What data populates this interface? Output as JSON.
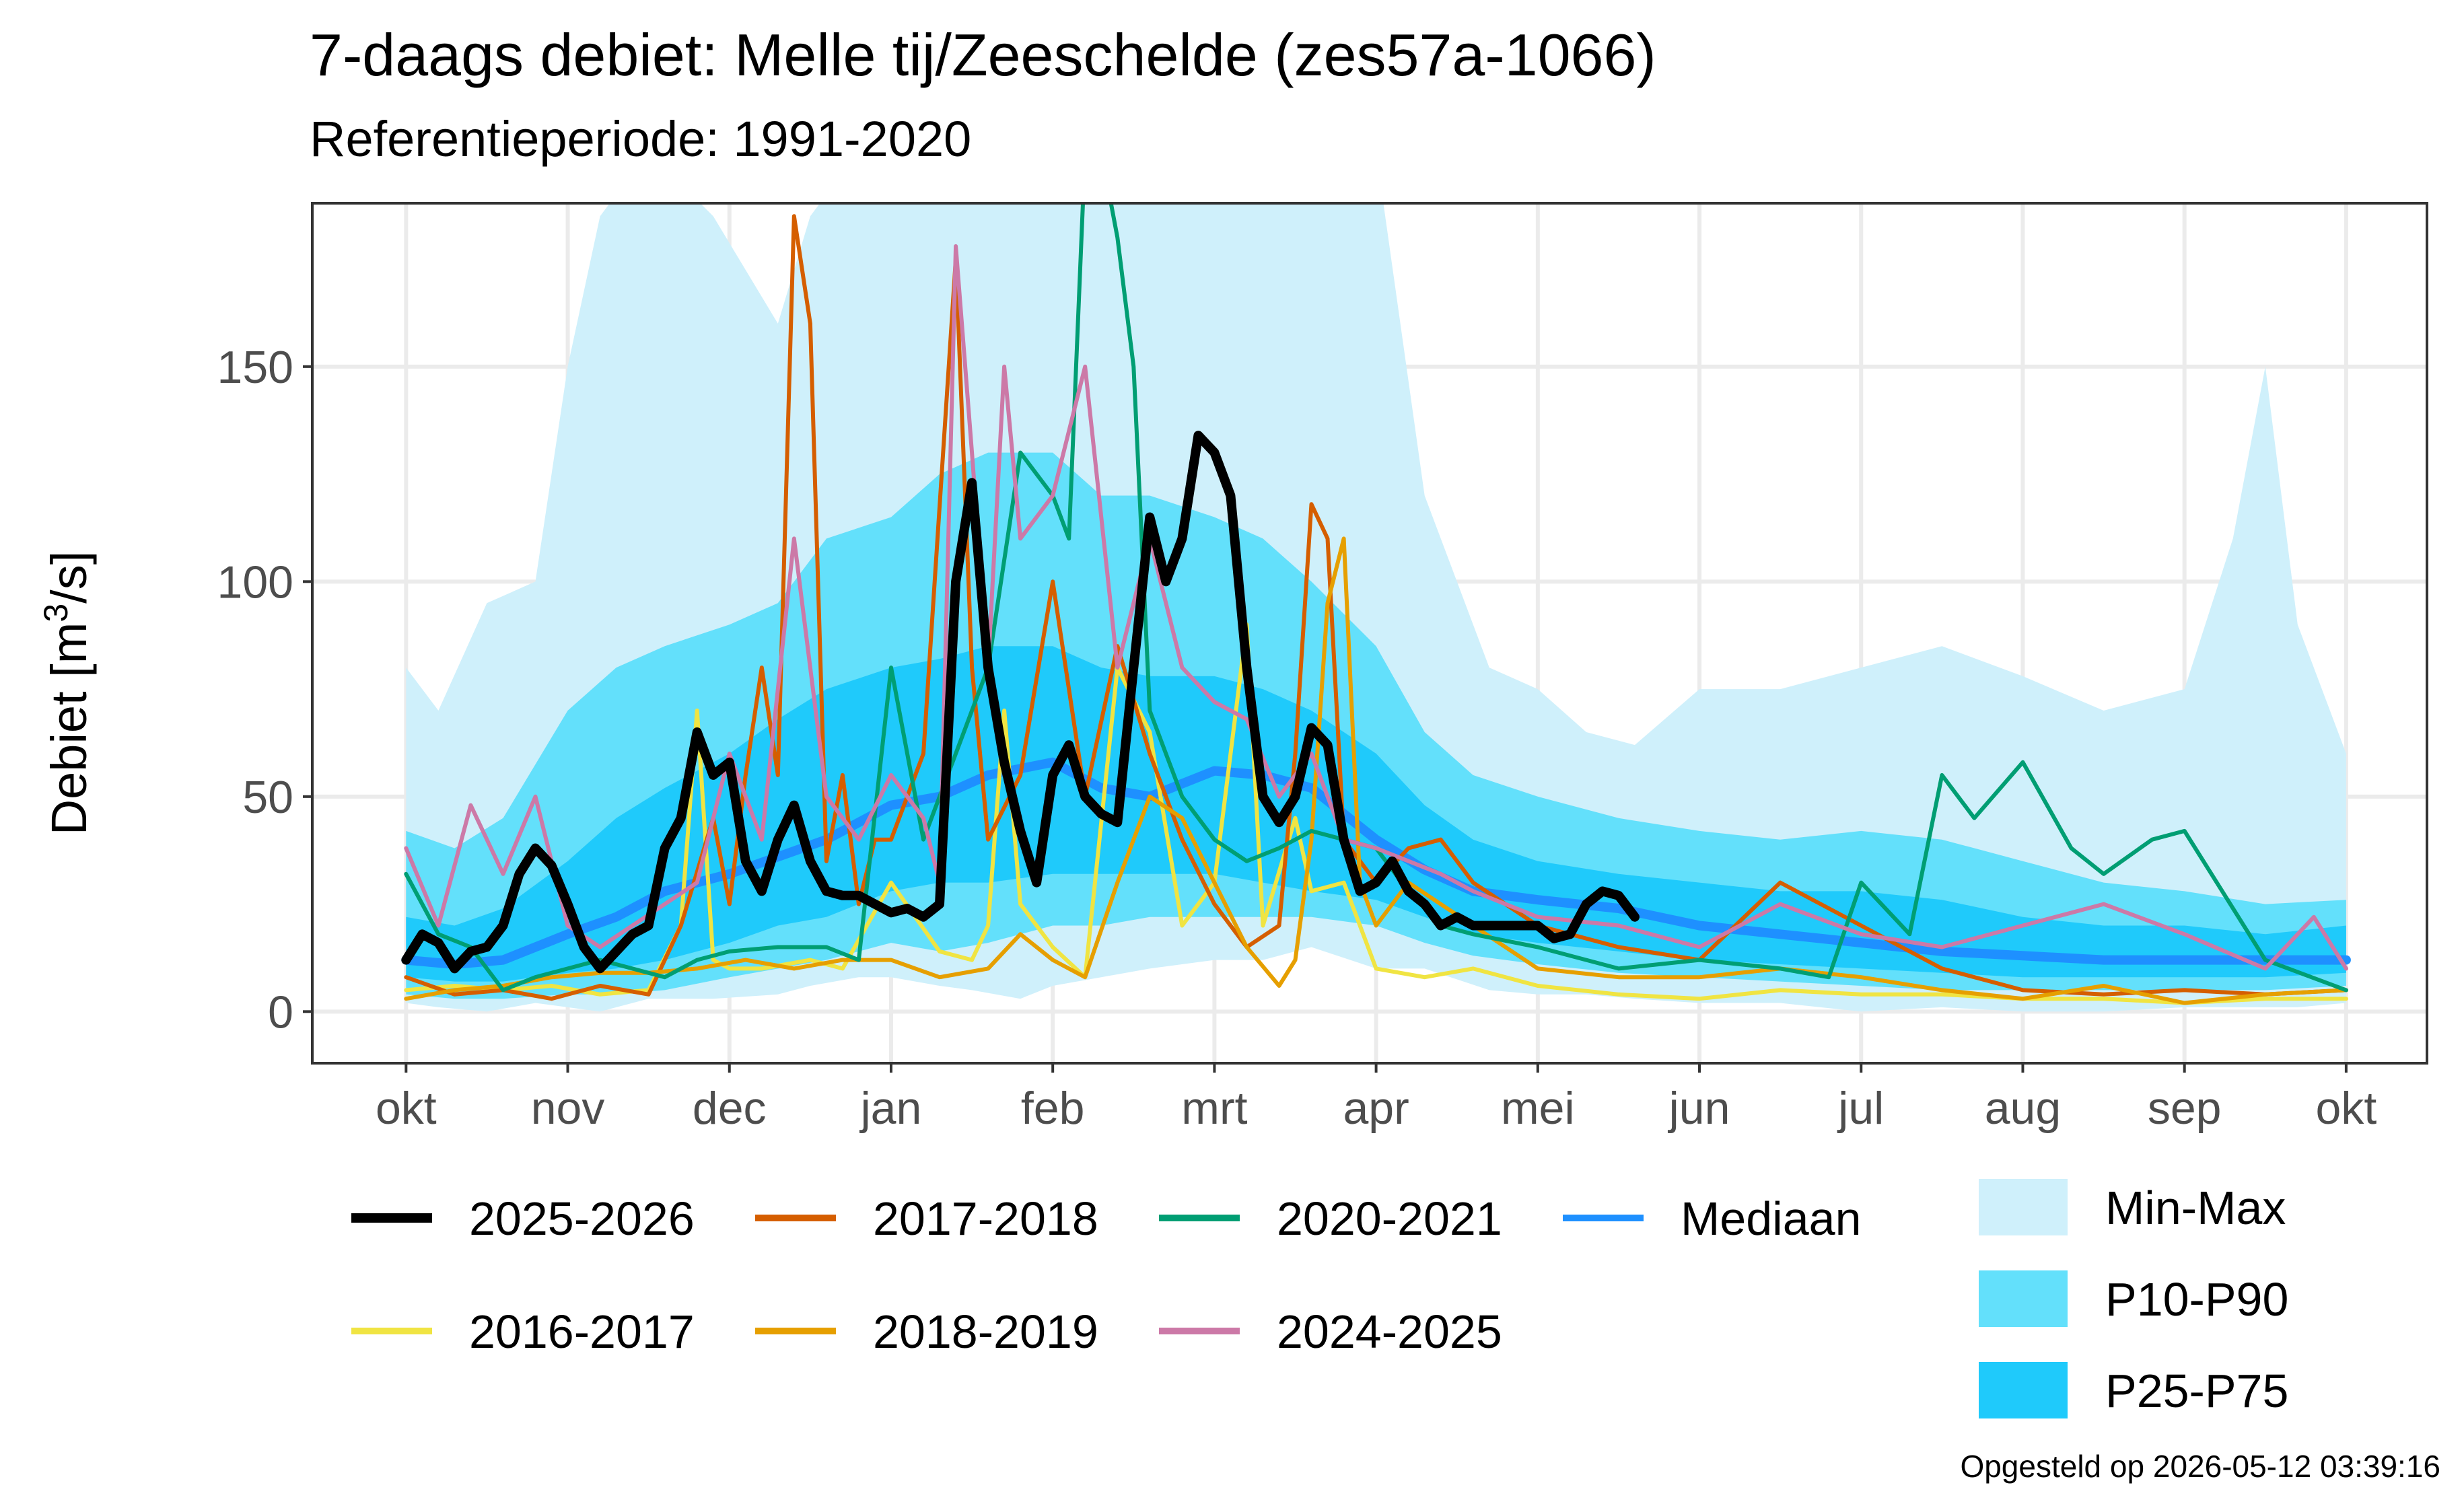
{
  "chart_data": {
    "type": "area",
    "title": "7-daags debiet: Melle tij/Zeeschelde (zes57a-1066)",
    "subtitle": "Referentieperiode: 1991-2020",
    "ylabel": "Debiet [m³/s]",
    "ylabel_main": "Debiet [m",
    "ylabel_sup": "3",
    "ylabel_end": "/s]",
    "caption": "Opgesteld op 2026-05-12 03:39:16",
    "x_ticks": [
      "okt",
      "nov",
      "dec",
      "jan",
      "feb",
      "mrt",
      "apr",
      "mei",
      "jun",
      "jul",
      "aug",
      "sep",
      "okt"
    ],
    "y_ticks": [
      0,
      50,
      100,
      150
    ],
    "ylim": [
      -12,
      188
    ],
    "xlim_months": [
      -0.58,
      12.5
    ],
    "grid": true,
    "legend_position": "bottom",
    "bands": [
      {
        "name": "Min-Max",
        "color": "#cff0fb",
        "x": [
          0.0,
          0.2,
          0.5,
          0.8,
          1.0,
          1.2,
          1.5,
          1.9,
          2.3,
          2.5,
          2.8,
          3.0,
          3.3,
          3.5,
          3.8,
          4.0,
          4.3,
          4.6,
          5.0,
          5.3,
          5.6,
          6.0,
          6.3,
          6.7,
          7.0,
          7.3,
          7.6,
          8.0,
          8.5,
          9.0,
          9.5,
          10.0,
          10.5,
          11.0,
          11.3,
          11.5,
          11.7,
          12.0
        ],
        "low": [
          2,
          1,
          0,
          2,
          1,
          0,
          3,
          3,
          4,
          6,
          8,
          8,
          6,
          5,
          3,
          6,
          8,
          10,
          12,
          12,
          15,
          10,
          10,
          5,
          4,
          4,
          3,
          2,
          2,
          0,
          1,
          0,
          0,
          1,
          1,
          1,
          1,
          2
        ],
        "high": [
          80,
          70,
          95,
          100,
          150,
          185,
          200,
          185,
          160,
          185,
          200,
          200,
          188,
          200,
          188,
          188,
          188,
          188,
          200,
          188,
          188,
          200,
          120,
          80,
          75,
          65,
          62,
          75,
          75,
          80,
          85,
          78,
          70,
          75,
          110,
          150,
          90,
          60
        ]
      },
      {
        "name": "P10-P90",
        "color": "#63e0fb",
        "x": [
          0.0,
          0.3,
          0.6,
          1.0,
          1.3,
          1.6,
          2.0,
          2.3,
          2.6,
          3.0,
          3.3,
          3.6,
          4.0,
          4.3,
          4.6,
          5.0,
          5.3,
          5.6,
          6.0,
          6.3,
          6.6,
          7.0,
          7.5,
          8.0,
          8.5,
          9.0,
          9.5,
          10.0,
          10.5,
          11.0,
          11.5,
          12.0
        ],
        "low": [
          4,
          3,
          3,
          4,
          4,
          5,
          8,
          10,
          12,
          16,
          14,
          16,
          20,
          20,
          22,
          22,
          22,
          22,
          20,
          16,
          13,
          11,
          9,
          8,
          7,
          6,
          5,
          5,
          5,
          5,
          5,
          6
        ],
        "high": [
          42,
          38,
          45,
          70,
          80,
          85,
          90,
          95,
          110,
          115,
          125,
          130,
          130,
          120,
          120,
          115,
          110,
          100,
          85,
          65,
          55,
          50,
          45,
          42,
          40,
          42,
          40,
          35,
          30,
          28,
          25,
          26
        ]
      },
      {
        "name": "P25-P75",
        "color": "#1fcafb",
        "x": [
          0.0,
          0.3,
          0.6,
          1.0,
          1.3,
          1.6,
          2.0,
          2.3,
          2.6,
          3.0,
          3.3,
          3.6,
          4.0,
          4.3,
          4.6,
          5.0,
          5.3,
          5.6,
          6.0,
          6.3,
          6.6,
          7.0,
          7.5,
          8.0,
          8.5,
          9.0,
          9.5,
          10.0,
          10.5,
          11.0,
          11.5,
          12.0
        ],
        "low": [
          8,
          7,
          7,
          9,
          10,
          12,
          16,
          20,
          22,
          28,
          30,
          30,
          32,
          32,
          32,
          32,
          30,
          28,
          26,
          22,
          18,
          16,
          14,
          12,
          11,
          10,
          9,
          8,
          8,
          8,
          8,
          9
        ],
        "high": [
          22,
          20,
          24,
          35,
          45,
          52,
          60,
          68,
          75,
          80,
          82,
          85,
          85,
          80,
          78,
          78,
          75,
          70,
          60,
          48,
          40,
          35,
          32,
          30,
          28,
          28,
          26,
          22,
          20,
          20,
          18,
          20
        ]
      }
    ],
    "series": [
      {
        "name": "Mediaan",
        "color": "#1e90ff",
        "width": 14,
        "x": [
          0.0,
          0.3,
          0.6,
          1.0,
          1.3,
          1.6,
          2.0,
          2.3,
          2.6,
          3.0,
          3.3,
          3.6,
          4.0,
          4.3,
          4.6,
          5.0,
          5.3,
          5.6,
          6.0,
          6.3,
          6.6,
          7.0,
          7.5,
          8.0,
          8.5,
          9.0,
          9.5,
          10.0,
          10.5,
          11.0,
          11.5,
          12.0
        ],
        "y": [
          12,
          11,
          12,
          18,
          22,
          28,
          32,
          36,
          40,
          48,
          50,
          55,
          58,
          52,
          50,
          56,
          55,
          52,
          40,
          33,
          28,
          26,
          24,
          20,
          18,
          16,
          14,
          13,
          12,
          12,
          12,
          12
        ]
      },
      {
        "name": "2016-2017",
        "color": "#f0e442",
        "width": 6,
        "x": [
          0.0,
          0.3,
          0.6,
          0.9,
          1.2,
          1.5,
          1.7,
          1.8,
          1.9,
          2.0,
          2.2,
          2.5,
          2.7,
          3.0,
          3.3,
          3.5,
          3.6,
          3.7,
          3.8,
          4.0,
          4.2,
          4.4,
          4.6,
          4.8,
          5.0,
          5.2,
          5.3,
          5.5,
          5.6,
          5.8,
          6.0,
          6.3,
          6.6,
          7.0,
          7.5,
          8.0,
          8.5,
          9.0,
          9.5,
          10.0,
          10.5,
          11.0,
          11.5,
          12.0
        ],
        "y": [
          5,
          6,
          5,
          6,
          4,
          5,
          20,
          70,
          12,
          10,
          10,
          12,
          10,
          30,
          14,
          12,
          20,
          70,
          25,
          15,
          8,
          80,
          65,
          20,
          30,
          90,
          20,
          45,
          28,
          30,
          10,
          8,
          10,
          6,
          4,
          3,
          5,
          4,
          4,
          3,
          3,
          2,
          3,
          3
        ]
      },
      {
        "name": "2017-2018",
        "color": "#d55e00",
        "width": 6,
        "x": [
          0.0,
          0.3,
          0.6,
          0.9,
          1.2,
          1.5,
          1.7,
          1.9,
          2.0,
          2.1,
          2.2,
          2.3,
          2.4,
          2.5,
          2.6,
          2.7,
          2.8,
          2.9,
          3.0,
          3.2,
          3.4,
          3.5,
          3.6,
          3.8,
          4.0,
          4.2,
          4.4,
          4.6,
          4.8,
          5.0,
          5.2,
          5.4,
          5.5,
          5.6,
          5.7,
          5.8,
          6.0,
          6.2,
          6.4,
          6.6,
          7.0,
          7.5,
          8.0,
          8.5,
          9.0,
          9.5,
          10.0,
          10.5,
          11.0,
          11.5,
          12.0
        ],
        "y": [
          8,
          4,
          5,
          3,
          6,
          4,
          20,
          45,
          25,
          55,
          80,
          55,
          185,
          160,
          35,
          55,
          25,
          40,
          40,
          60,
          175,
          80,
          40,
          55,
          100,
          50,
          85,
          60,
          40,
          25,
          15,
          20,
          60,
          118,
          110,
          40,
          30,
          38,
          40,
          30,
          20,
          15,
          12,
          30,
          20,
          10,
          5,
          4,
          5,
          4,
          5
        ]
      },
      {
        "name": "2018-2019",
        "color": "#e69f00",
        "width": 6,
        "x": [
          0.0,
          0.3,
          0.6,
          0.9,
          1.2,
          1.5,
          1.8,
          2.1,
          2.4,
          2.7,
          3.0,
          3.3,
          3.6,
          3.8,
          4.0,
          4.2,
          4.4,
          4.6,
          4.8,
          5.0,
          5.2,
          5.4,
          5.5,
          5.6,
          5.7,
          5.8,
          5.9,
          6.0,
          6.2,
          6.4,
          6.6,
          7.0,
          7.5,
          8.0,
          8.5,
          9.0,
          9.5,
          10.0,
          10.5,
          11.0,
          11.5,
          12.0
        ],
        "y": [
          3,
          5,
          6,
          8,
          9,
          9,
          10,
          12,
          10,
          12,
          12,
          8,
          10,
          18,
          12,
          8,
          30,
          50,
          45,
          30,
          15,
          6,
          12,
          40,
          95,
          110,
          30,
          20,
          30,
          25,
          20,
          10,
          8,
          8,
          10,
          8,
          5,
          3,
          6,
          2,
          4,
          5
        ]
      },
      {
        "name": "2020-2021",
        "color": "#009e73",
        "width": 6,
        "x": [
          0.0,
          0.2,
          0.4,
          0.6,
          0.8,
          1.0,
          1.2,
          1.4,
          1.6,
          1.8,
          2.0,
          2.3,
          2.6,
          2.8,
          3.0,
          3.2,
          3.4,
          3.6,
          3.8,
          4.0,
          4.1,
          4.2,
          4.3,
          4.4,
          4.5,
          4.6,
          4.7,
          4.8,
          5.0,
          5.2,
          5.4,
          5.6,
          5.8,
          6.0,
          6.2,
          6.4,
          6.6,
          7.0,
          7.5,
          8.0,
          8.5,
          8.8,
          9.0,
          9.3,
          9.5,
          9.7,
          10.0,
          10.3,
          10.5,
          10.8,
          11.0,
          11.5,
          12.0
        ],
        "y": [
          32,
          18,
          15,
          5,
          8,
          10,
          12,
          10,
          8,
          12,
          14,
          15,
          15,
          12,
          80,
          40,
          60,
          80,
          130,
          120,
          110,
          200,
          200,
          180,
          150,
          70,
          60,
          50,
          40,
          35,
          38,
          42,
          40,
          38,
          28,
          20,
          18,
          15,
          10,
          12,
          10,
          8,
          30,
          18,
          55,
          45,
          58,
          38,
          32,
          40,
          42,
          12,
          5
        ]
      },
      {
        "name": "2024-2025",
        "color": "#cc79a7",
        "width": 6,
        "x": [
          0.0,
          0.2,
          0.4,
          0.6,
          0.8,
          1.0,
          1.2,
          1.4,
          1.6,
          1.8,
          2.0,
          2.2,
          2.4,
          2.6,
          2.8,
          3.0,
          3.2,
          3.3,
          3.4,
          3.5,
          3.6,
          3.7,
          3.8,
          4.0,
          4.2,
          4.4,
          4.6,
          4.8,
          5.0,
          5.2,
          5.4,
          5.6,
          5.8,
          6.0,
          6.2,
          6.4,
          6.6,
          7.0,
          7.5,
          8.0,
          8.5,
          9.0,
          9.5,
          10.0,
          10.5,
          11.0,
          11.5,
          11.8,
          12.0
        ],
        "y": [
          38,
          20,
          48,
          32,
          50,
          20,
          15,
          20,
          25,
          30,
          60,
          40,
          110,
          50,
          40,
          55,
          45,
          30,
          178,
          130,
          80,
          150,
          110,
          120,
          150,
          80,
          110,
          80,
          72,
          68,
          50,
          60,
          40,
          38,
          35,
          32,
          28,
          22,
          20,
          15,
          25,
          18,
          15,
          20,
          25,
          18,
          10,
          22,
          10
        ]
      },
      {
        "name": "2025-2026",
        "color": "#000000",
        "width": 14,
        "x": [
          0.0,
          0.1,
          0.2,
          0.3,
          0.4,
          0.5,
          0.6,
          0.7,
          0.8,
          0.9,
          1.0,
          1.1,
          1.2,
          1.3,
          1.4,
          1.5,
          1.6,
          1.7,
          1.8,
          1.9,
          2.0,
          2.1,
          2.2,
          2.3,
          2.4,
          2.5,
          2.6,
          2.7,
          2.8,
          2.9,
          3.0,
          3.1,
          3.2,
          3.3,
          3.4,
          3.5,
          3.6,
          3.7,
          3.8,
          3.9,
          4.0,
          4.1,
          4.2,
          4.3,
          4.4,
          4.5,
          4.6,
          4.7,
          4.8,
          4.9,
          5.0,
          5.1,
          5.2,
          5.3,
          5.4,
          5.5,
          5.6,
          5.7,
          5.8,
          5.9,
          6.0,
          6.1,
          6.2,
          6.3,
          6.4,
          6.5,
          6.6,
          6.7,
          6.8,
          6.9,
          7.0,
          7.1,
          7.2,
          7.3,
          7.4,
          7.5,
          7.6
        ],
        "y": [
          12,
          18,
          16,
          10,
          14,
          15,
          20,
          32,
          38,
          34,
          25,
          15,
          10,
          14,
          18,
          20,
          38,
          45,
          65,
          55,
          58,
          35,
          28,
          40,
          48,
          35,
          28,
          27,
          27,
          25,
          23,
          24,
          22,
          25,
          100,
          123,
          80,
          58,
          42,
          30,
          55,
          62,
          50,
          46,
          44,
          80,
          115,
          100,
          110,
          134,
          130,
          120,
          80,
          50,
          44,
          50,
          66,
          62,
          40,
          28,
          30,
          35,
          28,
          25,
          20,
          22,
          20,
          20,
          20,
          20,
          20,
          17,
          18,
          25,
          28,
          27,
          22
        ]
      }
    ],
    "legend": {
      "lines": [
        {
          "label": "2025-2026",
          "color": "#000000",
          "width": 14
        },
        {
          "label": "2017-2018",
          "color": "#d55e00",
          "width": 10
        },
        {
          "label": "2020-2021",
          "color": "#009e73",
          "width": 10
        },
        {
          "label": "Mediaan",
          "color": "#1e90ff",
          "width": 10
        },
        {
          "label": "2016-2017",
          "color": "#f0e442",
          "width": 10
        },
        {
          "label": "2018-2019",
          "color": "#e69f00",
          "width": 10
        },
        {
          "label": "2024-2025",
          "color": "#cc79a7",
          "width": 10
        }
      ],
      "fills": [
        {
          "label": "Min-Max",
          "color": "#cff0fb"
        },
        {
          "label": "P10-P90",
          "color": "#63e0fb"
        },
        {
          "label": "P25-P75",
          "color": "#1fcafb"
        }
      ]
    }
  }
}
